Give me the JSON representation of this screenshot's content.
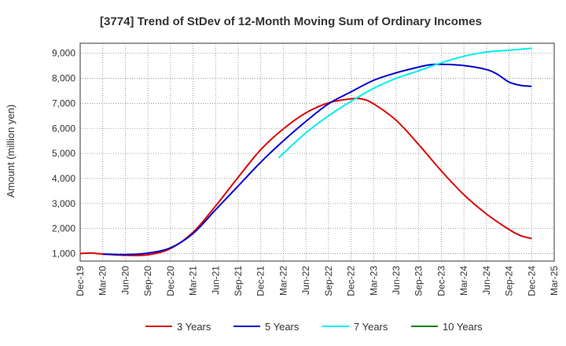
{
  "chart_data": {
    "type": "line",
    "title": "[3774]  Trend of StDev of 12-Month Moving Sum of Ordinary Incomes",
    "xlabel": "",
    "ylabel": "Amount (million yen)",
    "ylim": [
      700,
      9400
    ],
    "yticks": [
      1000,
      2000,
      3000,
      4000,
      5000,
      6000,
      7000,
      8000,
      9000
    ],
    "ytick_labels": [
      "1,000",
      "2,000",
      "3,000",
      "4,000",
      "5,000",
      "6,000",
      "7,000",
      "8,000",
      "9,000"
    ],
    "x_tick_labels": [
      "Dec-19",
      "Mar-20",
      "Jun-20",
      "Sep-20",
      "Dec-20",
      "Mar-21",
      "Jun-21",
      "Sep-21",
      "Dec-21",
      "Mar-22",
      "Jun-22",
      "Sep-22",
      "Dec-22",
      "Mar-23",
      "Jun-23",
      "Sep-23",
      "Dec-23",
      "Mar-24",
      "Jun-24",
      "Sep-24",
      "Dec-24",
      "Mar-25"
    ],
    "x_note": "x values are quarter indices: 0 = Dec-19, 21 = Mar-25",
    "grid": true,
    "legend_position": "bottom",
    "series": [
      {
        "name": "3 Years",
        "color": "#dd0000",
        "points": [
          [
            0,
            1000
          ],
          [
            0.5,
            1020
          ],
          [
            1,
            980
          ],
          [
            2,
            930
          ],
          [
            3,
            950
          ],
          [
            4,
            1200
          ],
          [
            5,
            1850
          ],
          [
            6,
            2900
          ],
          [
            7,
            4050
          ],
          [
            8,
            5150
          ],
          [
            9,
            5980
          ],
          [
            10,
            6620
          ],
          [
            11,
            7020
          ],
          [
            12,
            7180
          ],
          [
            12.5,
            7170
          ],
          [
            13,
            6980
          ],
          [
            14,
            6320
          ],
          [
            15,
            5350
          ],
          [
            16,
            4300
          ],
          [
            17,
            3350
          ],
          [
            18,
            2580
          ],
          [
            19,
            1960
          ],
          [
            19.5,
            1720
          ],
          [
            20,
            1600
          ]
        ]
      },
      {
        "name": "5 Years",
        "color": "#0000cc",
        "points": [
          [
            1,
            980
          ],
          [
            2,
            960
          ],
          [
            3,
            1020
          ],
          [
            4,
            1230
          ],
          [
            5,
            1800
          ],
          [
            6,
            2750
          ],
          [
            7,
            3700
          ],
          [
            8,
            4650
          ],
          [
            9,
            5500
          ],
          [
            10,
            6280
          ],
          [
            11,
            6980
          ],
          [
            12,
            7460
          ],
          [
            13,
            7920
          ],
          [
            14,
            8220
          ],
          [
            15,
            8450
          ],
          [
            15.5,
            8540
          ],
          [
            16,
            8560
          ],
          [
            17,
            8510
          ],
          [
            18,
            8350
          ],
          [
            18.5,
            8150
          ],
          [
            19,
            7850
          ],
          [
            19.5,
            7720
          ],
          [
            20,
            7680
          ]
        ]
      },
      {
        "name": "7 Years",
        "color": "#00eeee",
        "points": [
          [
            8.8,
            4820
          ],
          [
            9,
            5000
          ],
          [
            10,
            5820
          ],
          [
            11,
            6500
          ],
          [
            12,
            7080
          ],
          [
            13,
            7600
          ],
          [
            14,
            8000
          ],
          [
            15,
            8300
          ],
          [
            16,
            8620
          ],
          [
            17,
            8880
          ],
          [
            18,
            9050
          ],
          [
            19,
            9120
          ],
          [
            20,
            9200
          ]
        ]
      },
      {
        "name": "10 Years",
        "color": "#008000",
        "points": []
      }
    ]
  }
}
